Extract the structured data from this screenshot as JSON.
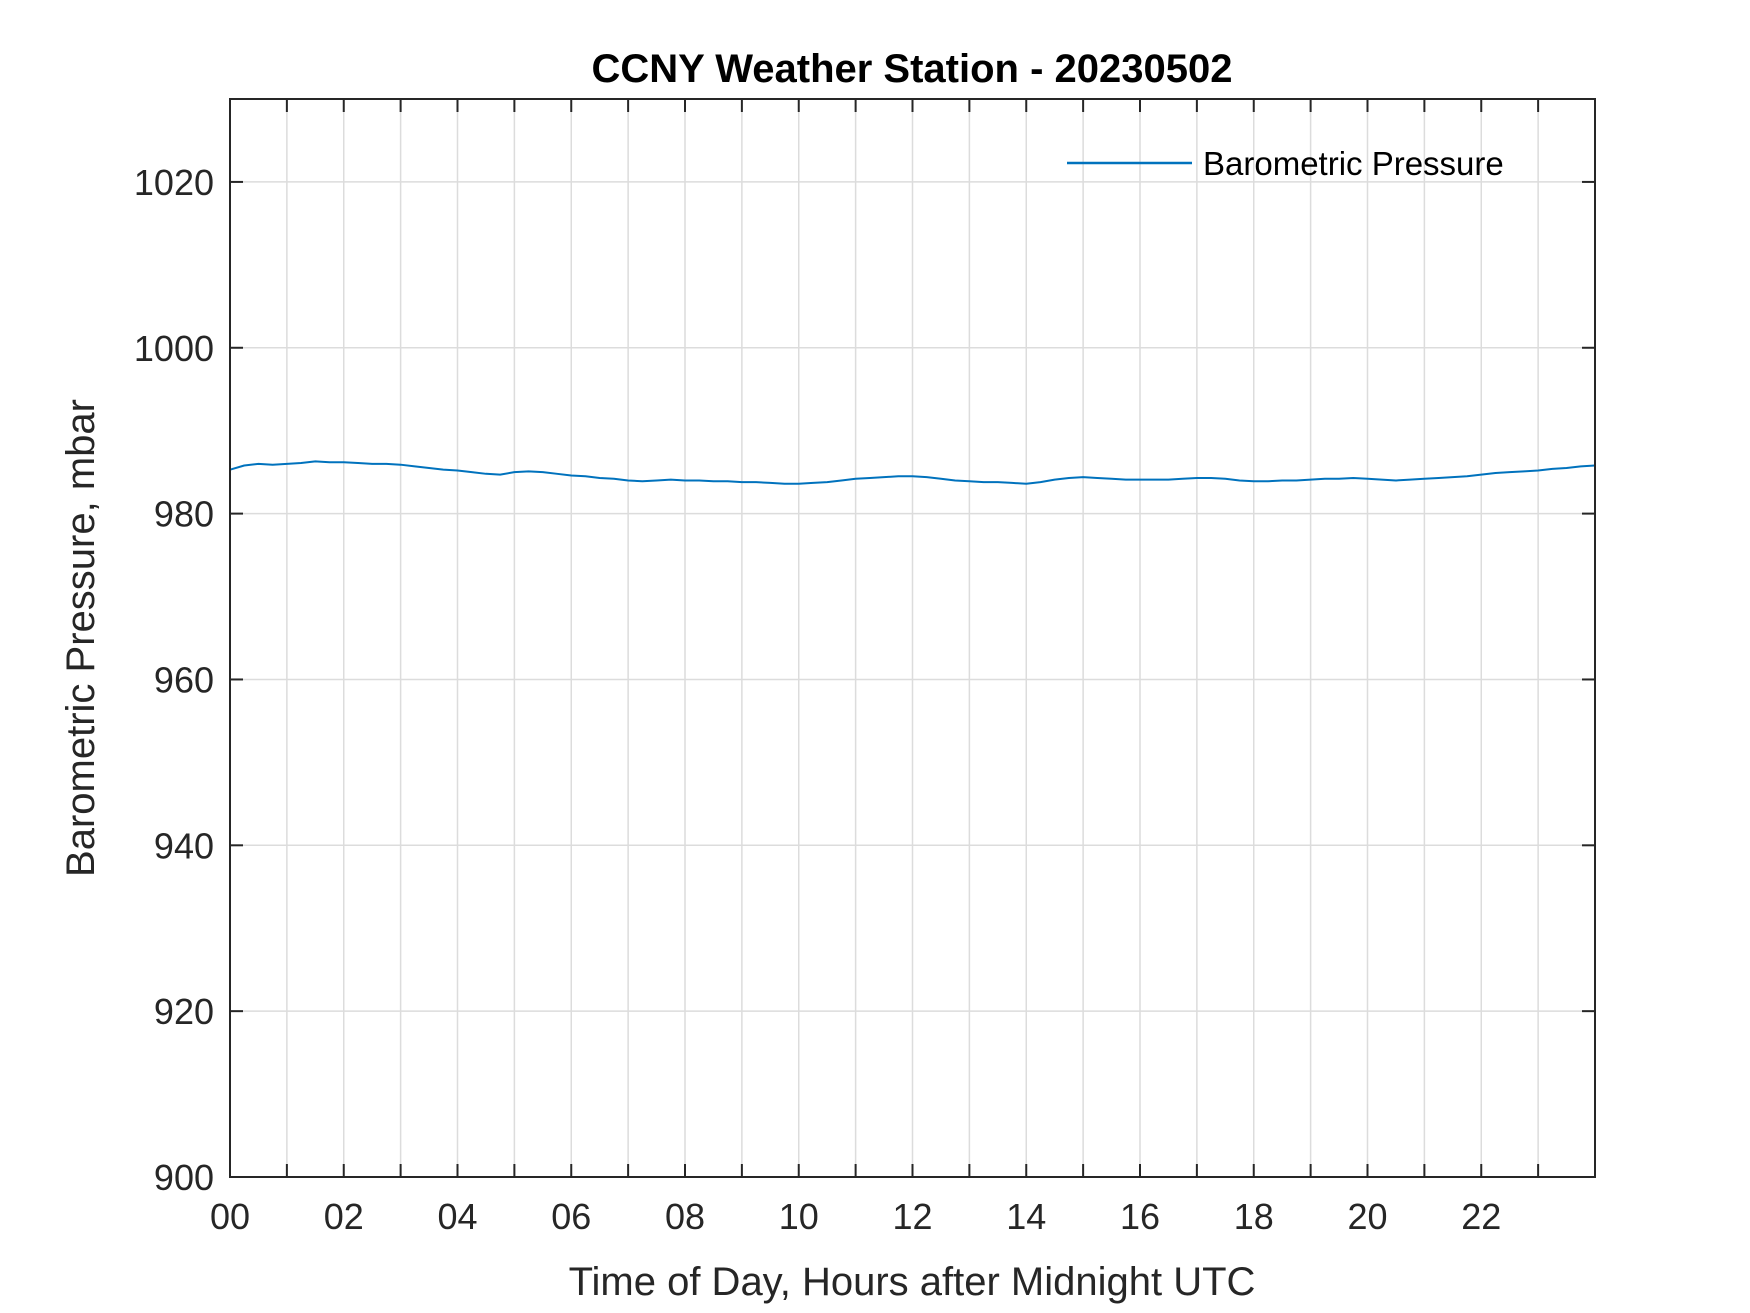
{
  "chart_data": {
    "type": "line",
    "title": "CCNY Weather Station - 20230502",
    "xlabel": "Time of Day, Hours after Midnight UTC",
    "ylabel": "Barometric Pressure, mbar",
    "xlim": [
      0,
      24
    ],
    "ylim": [
      900,
      1030
    ],
    "x_ticks": [
      0,
      2,
      4,
      6,
      8,
      10,
      12,
      14,
      16,
      18,
      20,
      22
    ],
    "x_tick_labels": [
      "00",
      "02",
      "04",
      "06",
      "08",
      "10",
      "12",
      "14",
      "16",
      "18",
      "20",
      "22"
    ],
    "x_grid": [
      0,
      1,
      2,
      3,
      4,
      5,
      6,
      7,
      8,
      9,
      10,
      11,
      12,
      13,
      14,
      15,
      16,
      17,
      18,
      19,
      20,
      21,
      22,
      23
    ],
    "y_ticks": [
      900,
      920,
      940,
      960,
      980,
      1000,
      1020
    ],
    "y_tick_labels": [
      "900",
      "920",
      "940",
      "960",
      "980",
      "1000",
      "1020"
    ],
    "grid": true,
    "legend_position": "top-right",
    "series": [
      {
        "name": "Barometric Pressure",
        "color": "#0072BD",
        "x": [
          0,
          0.25,
          0.5,
          0.75,
          1.0,
          1.25,
          1.5,
          1.75,
          2.0,
          2.25,
          2.5,
          2.75,
          3.0,
          3.25,
          3.5,
          3.75,
          4.0,
          4.25,
          4.5,
          4.75,
          5.0,
          5.25,
          5.5,
          5.75,
          6.0,
          6.25,
          6.5,
          6.75,
          7.0,
          7.25,
          7.5,
          7.75,
          8.0,
          8.25,
          8.5,
          8.75,
          9.0,
          9.25,
          9.5,
          9.75,
          10.0,
          10.25,
          10.5,
          10.75,
          11.0,
          11.25,
          11.5,
          11.75,
          12.0,
          12.25,
          12.5,
          12.75,
          13.0,
          13.25,
          13.5,
          13.75,
          14.0,
          14.25,
          14.5,
          14.75,
          15.0,
          15.25,
          15.5,
          15.75,
          16.0,
          16.25,
          16.5,
          16.75,
          17.0,
          17.25,
          17.5,
          17.75,
          18.0,
          18.25,
          18.5,
          18.75,
          19.0,
          19.25,
          19.5,
          19.75,
          20.0,
          20.25,
          20.5,
          20.75,
          21.0,
          21.25,
          21.5,
          21.75,
          22.0,
          22.25,
          22.5,
          22.75,
          23.0,
          23.25,
          23.5,
          23.75,
          24.0
        ],
        "y": [
          985.3,
          985.8,
          986.0,
          985.9,
          986.0,
          986.1,
          986.3,
          986.2,
          986.2,
          986.1,
          986.0,
          986.0,
          985.9,
          985.7,
          985.5,
          985.3,
          985.2,
          985.0,
          984.8,
          984.7,
          985.0,
          985.1,
          985.0,
          984.8,
          984.6,
          984.5,
          984.3,
          984.2,
          984.0,
          983.9,
          984.0,
          984.1,
          984.0,
          984.0,
          983.9,
          983.9,
          983.8,
          983.8,
          983.7,
          983.6,
          983.6,
          983.7,
          983.8,
          984.0,
          984.2,
          984.3,
          984.4,
          984.5,
          984.5,
          984.4,
          984.2,
          984.0,
          983.9,
          983.8,
          983.8,
          983.7,
          983.6,
          983.8,
          984.1,
          984.3,
          984.4,
          984.3,
          984.2,
          984.1,
          984.1,
          984.1,
          984.1,
          984.2,
          984.3,
          984.3,
          984.2,
          984.0,
          983.9,
          983.9,
          984.0,
          984.0,
          984.1,
          984.2,
          984.2,
          984.3,
          984.2,
          984.1,
          984.0,
          984.1,
          984.2,
          984.3,
          984.4,
          984.5,
          984.7,
          984.9,
          985.0,
          985.1,
          985.2,
          985.4,
          985.5,
          985.7,
          985.8
        ]
      }
    ]
  }
}
